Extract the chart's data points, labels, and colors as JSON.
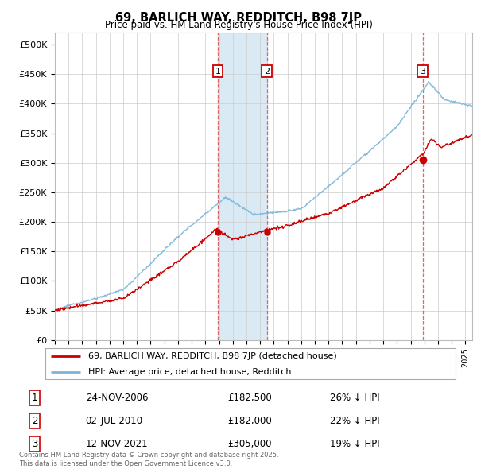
{
  "title": "69, BARLICH WAY, REDDITCH, B98 7JP",
  "subtitle": "Price paid vs. HM Land Registry's House Price Index (HPI)",
  "ylim": [
    0,
    520000
  ],
  "yticks": [
    0,
    50000,
    100000,
    150000,
    200000,
    250000,
    300000,
    350000,
    400000,
    450000,
    500000
  ],
  "ytick_labels": [
    "£0",
    "£50K",
    "£100K",
    "£150K",
    "£200K",
    "£250K",
    "£300K",
    "£350K",
    "£400K",
    "£450K",
    "£500K"
  ],
  "xlim_start": 1995.0,
  "xlim_end": 2025.5,
  "legend_line1": "69, BARLICH WAY, REDDITCH, B98 7JP (detached house)",
  "legend_line2": "HPI: Average price, detached house, Redditch",
  "transaction1_label": "1",
  "transaction1_date": "24-NOV-2006",
  "transaction1_price": "£182,500",
  "transaction1_hpi": "26% ↓ HPI",
  "transaction1_year": 2006.9,
  "transaction1_price_val": 182500,
  "transaction2_label": "2",
  "transaction2_date": "02-JUL-2010",
  "transaction2_price": "£182,000",
  "transaction2_hpi": "22% ↓ HPI",
  "transaction2_year": 2010.5,
  "transaction2_price_val": 182000,
  "transaction3_label": "3",
  "transaction3_date": "12-NOV-2021",
  "transaction3_price": "£305,000",
  "transaction3_hpi": "19% ↓ HPI",
  "transaction3_year": 2021.87,
  "transaction3_price_val": 305000,
  "hpi_color": "#7ab5d8",
  "price_color": "#cc0000",
  "shade_color": "#daeaf5",
  "footnote": "Contains HM Land Registry data © Crown copyright and database right 2025.\nThis data is licensed under the Open Government Licence v3.0."
}
